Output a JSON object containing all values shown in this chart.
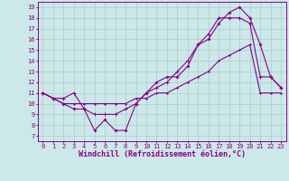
{
  "xlabel": "Windchill (Refroidissement éolien,°C)",
  "bg_color": "#cce8e8",
  "grid_color": "#aacccc",
  "line_color": "#880088",
  "xlim_min": -0.5,
  "xlim_max": 23.5,
  "ylim_min": 6.5,
  "ylim_max": 19.5,
  "yticks": [
    7,
    8,
    9,
    10,
    11,
    12,
    13,
    14,
    15,
    16,
    17,
    18,
    19
  ],
  "xticks": [
    0,
    1,
    2,
    3,
    4,
    5,
    6,
    7,
    8,
    9,
    10,
    11,
    12,
    13,
    14,
    15,
    16,
    17,
    18,
    19,
    20,
    21,
    22,
    23
  ],
  "line1_x": [
    0,
    1,
    2,
    3,
    4,
    5,
    6,
    7,
    8,
    9,
    10,
    11,
    12,
    13,
    14,
    15,
    16,
    17,
    18,
    19,
    20,
    21,
    22,
    23
  ],
  "line1_y": [
    11,
    10.5,
    10,
    9.5,
    9.5,
    7.5,
    8.5,
    7.5,
    7.5,
    10,
    11,
    12,
    12.5,
    12.5,
    13.5,
    15.5,
    16,
    17.5,
    18.5,
    19,
    18,
    15.5,
    12.5,
    11.5
  ],
  "line2_x": [
    0,
    1,
    2,
    3,
    4,
    5,
    6,
    7,
    8,
    9,
    10,
    11,
    12,
    13,
    14,
    15,
    16,
    17,
    18,
    19,
    20,
    21,
    22,
    23
  ],
  "line2_y": [
    11,
    10.5,
    10.5,
    11,
    9.5,
    9.0,
    9.0,
    9.0,
    9.5,
    10,
    11,
    11.5,
    12,
    13,
    14,
    15.5,
    16.5,
    18,
    18,
    18,
    17.5,
    12.5,
    12.5,
    11.5
  ],
  "line3_x": [
    0,
    1,
    2,
    3,
    4,
    5,
    6,
    7,
    8,
    9,
    10,
    11,
    12,
    13,
    14,
    15,
    16,
    17,
    18,
    19,
    20,
    21,
    22,
    23
  ],
  "line3_y": [
    11,
    10.5,
    10,
    10,
    10,
    10,
    10,
    10,
    10,
    10.5,
    10.5,
    11,
    11,
    11.5,
    12,
    12.5,
    13,
    14,
    14.5,
    15,
    15.5,
    11,
    11,
    11
  ],
  "tick_fontsize": 5,
  "xlabel_fontsize": 6,
  "lw": 0.8,
  "ms": 2.0
}
